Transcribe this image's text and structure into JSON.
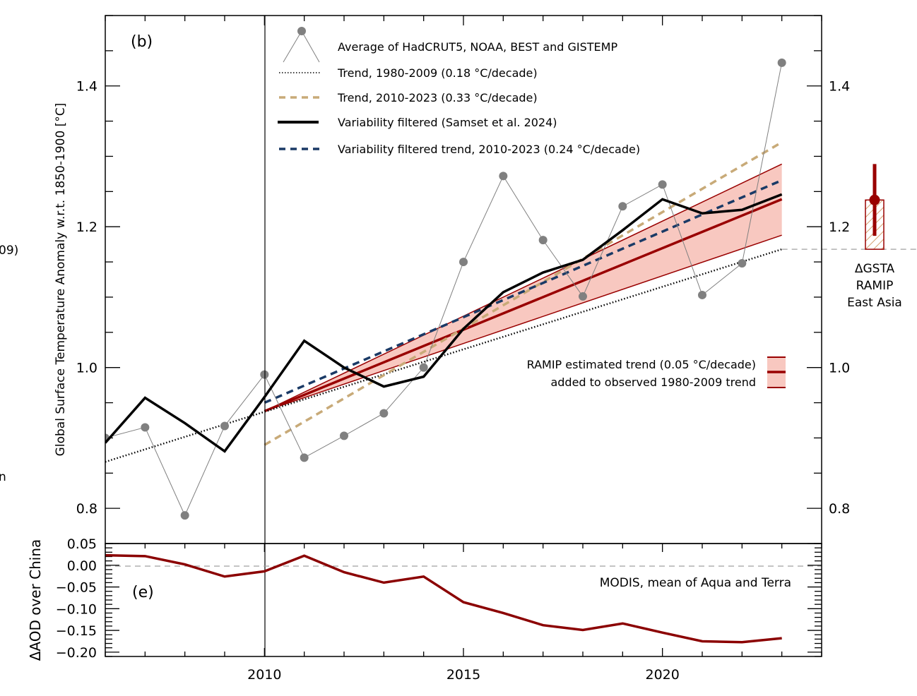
{
  "chart_data": [
    {
      "panel": "(b)",
      "type": "line",
      "title": "",
      "xlabel": "",
      "ylabel": "Global Surface Temperature Anomaly w.r.t. 1850-1900 [°C]",
      "xlim": [
        2006,
        2024
      ],
      "ylim": [
        0.75,
        1.5
      ],
      "yticks": [
        0.8,
        1.0,
        1.2,
        1.4
      ],
      "ytick_labels": [
        "0.8",
        "1.0",
        "1.2",
        "1.4"
      ],
      "right_ytick_labels": [
        "0.8",
        "1.0",
        "1.2",
        "1.4"
      ],
      "yminor_step": 0.05,
      "xminor_step": 1,
      "vline_x": 2010,
      "grid": false,
      "legend_position": "top-center",
      "series": [
        {
          "name": "Average of HadCRUT5, NOAA, BEST and GISTEMP",
          "style": "gray-line-markers",
          "color": "#808080",
          "x": [
            2006,
            2007,
            2008,
            2009,
            2010,
            2011,
            2012,
            2013,
            2014,
            2015,
            2016,
            2017,
            2018,
            2019,
            2020,
            2021,
            2022,
            2023
          ],
          "y": [
            0.9,
            0.915,
            0.79,
            0.917,
            0.99,
            0.872,
            0.903,
            0.935,
            1.0,
            1.15,
            1.272,
            1.181,
            1.101,
            1.229,
            1.26,
            1.103,
            1.148,
            1.433
          ]
        },
        {
          "name": "Trend, 1980-2009 (0.18 °C/decade)",
          "style": "dotted",
          "color": "#000000",
          "x": [
            2006,
            2023
          ],
          "y": [
            0.866,
            1.168
          ]
        },
        {
          "name": "Trend, 2010-2023 (0.33 °C/decade)",
          "style": "dashed",
          "color": "#c8aa78",
          "x": [
            2010,
            2023
          ],
          "y": [
            0.89,
            1.32
          ]
        },
        {
          "name": "Variability filtered (Samset et al. 2024)",
          "style": "solid-thick",
          "color": "#000000",
          "x": [
            2006,
            2007,
            2008,
            2009,
            2010,
            2011,
            2012,
            2013,
            2014,
            2015,
            2016,
            2017,
            2018,
            2019,
            2020,
            2021,
            2022,
            2023
          ],
          "y": [
            0.893,
            0.957,
            0.921,
            0.881,
            0.958,
            1.038,
            1.0,
            0.973,
            0.987,
            1.055,
            1.107,
            1.135,
            1.153,
            1.195,
            1.239,
            1.219,
            1.224,
            1.246
          ]
        },
        {
          "name": "Variability filtered trend, 2010-2023 (0.24 °C/decade)",
          "style": "dashed",
          "color": "#1a3a66",
          "x": [
            2010,
            2023
          ],
          "y": [
            0.95,
            1.266
          ]
        },
        {
          "name": "RAMIP estimated trend (0.05 °C/decade) added to observed 1980-2009 trend",
          "style": "band",
          "color": "#990000",
          "fill": "#f8c8c0",
          "x": [
            2010,
            2023
          ],
          "y_center": [
            0.938,
            1.239
          ],
          "y_low": [
            0.938,
            1.188
          ],
          "y_high": [
            0.938,
            1.289
          ]
        }
      ],
      "reference_line": {
        "y": 1.168,
        "style": "dashed",
        "color": "#a0a0a0",
        "note": "extends from 2023 into right margin"
      },
      "ramip_box": {
        "label_lines": [
          "ΔGSTA",
          "RAMIP",
          "East Asia"
        ],
        "box_range": [
          1.168,
          1.238
        ],
        "point": 1.238,
        "whisker": [
          1.187,
          1.289
        ],
        "color": "#990000"
      },
      "annotations": [
        "(b)",
        "RAMIP estimated trend (0.05 °C/decade)",
        "added to observed 1980-2009 trend"
      ]
    },
    {
      "panel": "(e)",
      "type": "line",
      "title": "",
      "xlabel": "",
      "ylabel": "ΔAOD over China",
      "xlim": [
        2006,
        2024
      ],
      "ylim": [
        -0.21,
        0.05
      ],
      "xticks": [
        2010,
        2015,
        2020
      ],
      "xtick_labels": [
        "2010",
        "2015",
        "2020"
      ],
      "yticks": [
        0.05,
        0.0,
        -0.05,
        -0.1,
        -0.15,
        -0.2
      ],
      "ytick_labels": [
        "0.05",
        "0.00",
        "−0.05",
        "−0.10",
        "−0.15",
        "−0.20"
      ],
      "yminor_step": 0.01,
      "zero_line": true,
      "grid": false,
      "series": [
        {
          "name": "MODIS, mean of Aqua and Terra",
          "color": "#8b0000",
          "x": [
            2006,
            2007,
            2008,
            2009,
            2010,
            2011,
            2012,
            2013,
            2014,
            2015,
            2016,
            2017,
            2018,
            2019,
            2020,
            2021,
            2022,
            2023
          ],
          "y": [
            0.023,
            0.021,
            0.002,
            -0.026,
            -0.014,
            0.022,
            -0.016,
            -0.04,
            -0.026,
            -0.085,
            -0.11,
            -0.138,
            -0.149,
            -0.134,
            -0.155,
            -0.175,
            -0.177,
            -0.168
          ]
        }
      ],
      "annotations": [
        "(e)",
        "MODIS, mean of Aqua and Terra"
      ]
    }
  ],
  "clipped_fragments": {
    "left_edge_1": "09)",
    "left_edge_2": "n"
  }
}
